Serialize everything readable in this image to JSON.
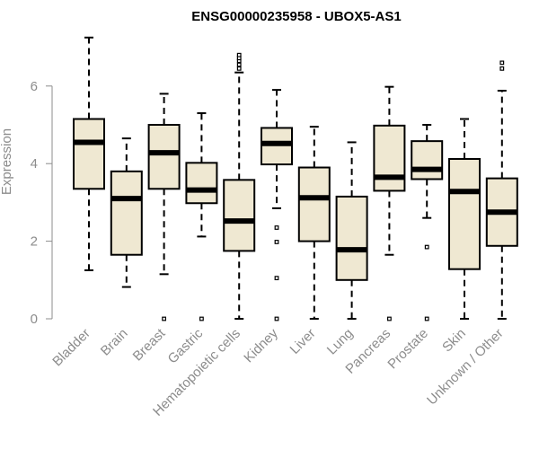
{
  "chart_data": {
    "type": "boxplot",
    "title": "ENSG00000235958 - UBOX5-AS1",
    "ylabel": "Expression",
    "xlabel": "",
    "ylim": [
      0,
      7.3
    ],
    "yticks": [
      0,
      2,
      4,
      6
    ],
    "grid": false,
    "colors": {
      "box_fill": "#efe8d2",
      "box_stroke": "#000000",
      "axis": "#8c8c8c"
    },
    "categories": [
      "Bladder",
      "Brain",
      "Breast",
      "Gastric",
      "Hematopoietic cells",
      "Kidney",
      "Liver",
      "Lung",
      "Pancreas",
      "Prostate",
      "Skin",
      "Unknown / Other"
    ],
    "boxes": [
      {
        "q1": 3.35,
        "median": 4.55,
        "q3": 5.15,
        "whisker_low": 1.25,
        "whisker_high": 7.25,
        "outliers": []
      },
      {
        "q1": 1.65,
        "median": 3.1,
        "q3": 3.8,
        "whisker_low": 0.82,
        "whisker_high": 4.65,
        "outliers": []
      },
      {
        "q1": 3.35,
        "median": 4.28,
        "q3": 5.0,
        "whisker_low": 1.15,
        "whisker_high": 5.8,
        "outliers": [
          0.0
        ]
      },
      {
        "q1": 2.98,
        "median": 3.32,
        "q3": 4.02,
        "whisker_low": 2.12,
        "whisker_high": 5.3,
        "outliers": [
          0.0
        ]
      },
      {
        "q1": 1.75,
        "median": 2.52,
        "q3": 3.58,
        "whisker_low": 0.0,
        "whisker_high": 6.35,
        "outliers": [
          6.45,
          6.55,
          6.65,
          6.72,
          6.8
        ]
      },
      {
        "q1": 3.98,
        "median": 4.52,
        "q3": 4.92,
        "whisker_low": 2.85,
        "whisker_high": 5.9,
        "outliers": [
          2.35,
          1.98,
          1.05,
          0.0
        ]
      },
      {
        "q1": 2.0,
        "median": 3.12,
        "q3": 3.9,
        "whisker_low": 0.0,
        "whisker_high": 4.95,
        "outliers": []
      },
      {
        "q1": 1.0,
        "median": 1.78,
        "q3": 3.15,
        "whisker_low": 0.0,
        "whisker_high": 4.55,
        "outliers": []
      },
      {
        "q1": 3.3,
        "median": 3.65,
        "q3": 4.98,
        "whisker_low": 1.65,
        "whisker_high": 5.98,
        "outliers": [
          0.0
        ]
      },
      {
        "q1": 3.6,
        "median": 3.85,
        "q3": 4.58,
        "whisker_low": 2.6,
        "whisker_high": 5.0,
        "outliers": [
          1.85,
          0.0
        ]
      },
      {
        "q1": 1.28,
        "median": 3.28,
        "q3": 4.12,
        "whisker_low": 0.0,
        "whisker_high": 5.15,
        "outliers": []
      },
      {
        "q1": 1.88,
        "median": 2.75,
        "q3": 3.62,
        "whisker_low": 0.0,
        "whisker_high": 5.88,
        "outliers": [
          6.45,
          6.6
        ]
      }
    ]
  }
}
